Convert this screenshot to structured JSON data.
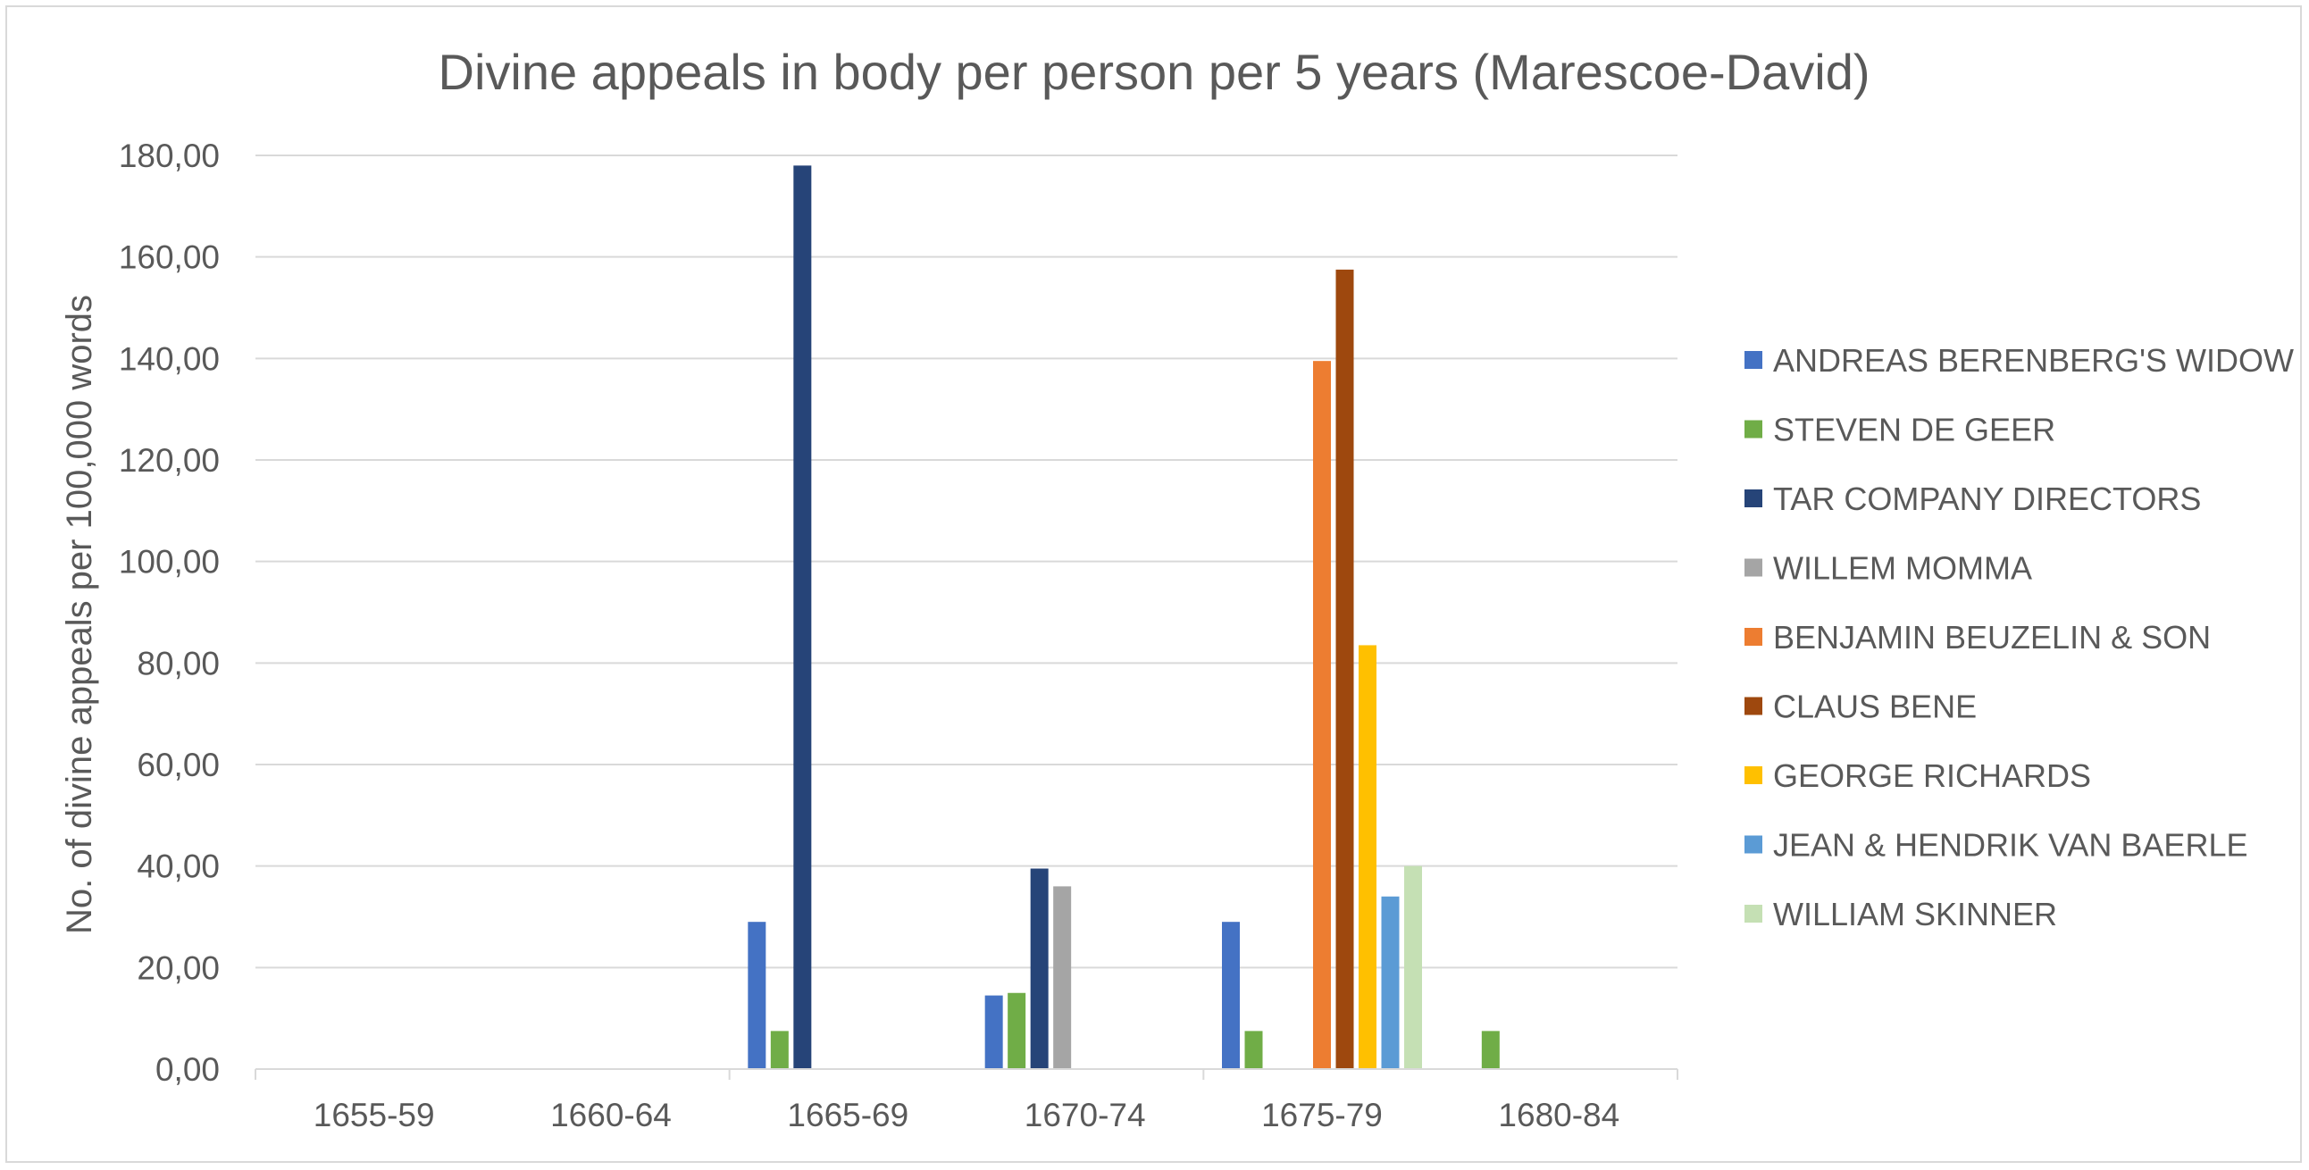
{
  "chart_data": {
    "type": "bar",
    "title": "Divine appeals in body per person per 5 years (Marescoe-David)",
    "xlabel": "",
    "ylabel": "No. of divine appeals per 100,000 words",
    "ylim": [
      0,
      180
    ],
    "yticks": [
      "0,00",
      "20,00",
      "40,00",
      "60,00",
      "80,00",
      "100,00",
      "120,00",
      "140,00",
      "160,00",
      "180,00"
    ],
    "grid": true,
    "legend_position": "right",
    "categories": [
      "1655-59",
      "1660-64",
      "1665-69",
      "1670-74",
      "1675-79",
      "1680-84"
    ],
    "series": [
      {
        "name": "ANDREAS BERENBERG'S WIDOW",
        "color": "#4472C4",
        "values": [
          null,
          null,
          29.0,
          14.5,
          29.0,
          null
        ]
      },
      {
        "name": "STEVEN DE GEER",
        "color": "#70AD47",
        "values": [
          null,
          null,
          7.5,
          15.0,
          7.5,
          7.5
        ]
      },
      {
        "name": "TAR COMPANY DIRECTORS",
        "color": "#264478",
        "values": [
          null,
          null,
          178.0,
          39.5,
          null,
          null
        ]
      },
      {
        "name": "WILLEM MOMMA",
        "color": "#A5A5A5",
        "values": [
          null,
          null,
          null,
          36.0,
          null,
          null
        ]
      },
      {
        "name": "BENJAMIN BEUZELIN & SON",
        "color": "#ED7D31",
        "values": [
          null,
          null,
          null,
          null,
          139.5,
          null
        ]
      },
      {
        "name": "CLAUS BENE",
        "color": "#9E480E",
        "values": [
          null,
          null,
          null,
          null,
          157.5,
          null
        ]
      },
      {
        "name": "GEORGE RICHARDS",
        "color": "#FFC000",
        "values": [
          null,
          null,
          null,
          null,
          83.5,
          null
        ]
      },
      {
        "name": "JEAN & HENDRIK VAN BAERLE",
        "color": "#5B9BD5",
        "values": [
          null,
          null,
          null,
          null,
          34.0,
          null
        ]
      },
      {
        "name": "WILLIAM SKINNER",
        "color": "#C5E0B4",
        "values": [
          null,
          null,
          null,
          null,
          40.0,
          null
        ]
      }
    ]
  }
}
